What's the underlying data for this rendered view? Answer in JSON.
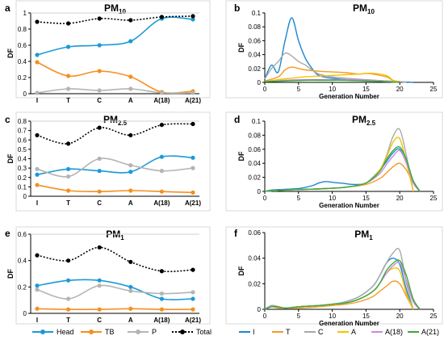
{
  "chart_data": [
    {
      "panel": "a",
      "type": "line",
      "title": "PM10",
      "title_main": "PM",
      "title_sub": "10",
      "xlabel": "",
      "ylabel": "DF",
      "categories": [
        "I",
        "T",
        "C",
        "A",
        "A(18)",
        "A(21)"
      ],
      "ylim": [
        0,
        1
      ],
      "yticks": [
        "0",
        "0.2",
        "0.4",
        "0.6",
        "0.8",
        "1"
      ],
      "ytick_values": [
        0,
        0.2,
        0.4,
        0.6,
        0.8,
        1
      ],
      "series": [
        {
          "name": "Head",
          "values": [
            0.48,
            0.58,
            0.6,
            0.65,
            0.93,
            0.92
          ]
        },
        {
          "name": "TB",
          "values": [
            0.39,
            0.22,
            0.28,
            0.21,
            0.02,
            0.03
          ]
        },
        {
          "name": "P",
          "values": [
            0.01,
            0.06,
            0.04,
            0.06,
            0.01,
            0.01
          ]
        },
        {
          "name": "Total",
          "values": [
            0.89,
            0.87,
            0.93,
            0.91,
            0.95,
            0.96
          ]
        }
      ]
    },
    {
      "panel": "c",
      "type": "line",
      "title": "PM2.5",
      "title_main": "PM",
      "title_sub": "2.5",
      "xlabel": "",
      "ylabel": "DF",
      "categories": [
        "I",
        "T",
        "C",
        "A",
        "A(18)",
        "A(21)"
      ],
      "ylim": [
        0,
        0.8
      ],
      "yticks": [
        "0",
        "0.1",
        "0.2",
        "0.3",
        "0.4",
        "0.5",
        "0.6",
        "0.7",
        "0.8"
      ],
      "ytick_values": [
        0,
        0.1,
        0.2,
        0.3,
        0.4,
        0.5,
        0.6,
        0.7,
        0.8
      ],
      "series": [
        {
          "name": "Head",
          "values": [
            0.23,
            0.29,
            0.27,
            0.26,
            0.42,
            0.41
          ]
        },
        {
          "name": "TB",
          "values": [
            0.12,
            0.06,
            0.05,
            0.06,
            0.05,
            0.04
          ]
        },
        {
          "name": "P",
          "values": [
            0.29,
            0.21,
            0.4,
            0.33,
            0.27,
            0.3
          ]
        },
        {
          "name": "Total",
          "values": [
            0.65,
            0.56,
            0.73,
            0.65,
            0.76,
            0.77
          ]
        }
      ]
    },
    {
      "panel": "e",
      "type": "line",
      "title": "PM1",
      "title_main": "PM",
      "title_sub": "1",
      "xlabel": "",
      "ylabel": "DF",
      "categories": [
        "I",
        "T",
        "C",
        "A",
        "A(18)",
        "A(21)"
      ],
      "ylim": [
        0,
        0.6
      ],
      "yticks": [
        "0",
        "0.2",
        "0.4",
        "0.6"
      ],
      "ytick_values": [
        0,
        0.2,
        0.4,
        0.6
      ],
      "series": [
        {
          "name": "Head",
          "values": [
            0.21,
            0.25,
            0.25,
            0.2,
            0.11,
            0.11
          ]
        },
        {
          "name": "TB",
          "values": [
            0.035,
            0.03,
            0.03,
            0.035,
            0.03,
            0.03
          ]
        },
        {
          "name": "P",
          "values": [
            0.18,
            0.11,
            0.21,
            0.17,
            0.15,
            0.16
          ]
        },
        {
          "name": "Total",
          "values": [
            0.44,
            0.4,
            0.5,
            0.39,
            0.32,
            0.33
          ]
        }
      ]
    },
    {
      "panel": "b",
      "type": "line",
      "title": "PM10",
      "title_main": "PM",
      "title_sub": "10",
      "xlabel": "Generation Number",
      "ylabel": "DF",
      "xlim": [
        0,
        25
      ],
      "xticks": [
        "0",
        "5",
        "10",
        "15",
        "20",
        "25"
      ],
      "xtick_values": [
        0,
        5,
        10,
        15,
        20,
        25
      ],
      "ylim": [
        0,
        0.1
      ],
      "yticks": [
        "0",
        "0.02",
        "0.04",
        "0.06",
        "0.08",
        "0.1"
      ],
      "ytick_values": [
        0,
        0.02,
        0.04,
        0.06,
        0.08,
        0.1
      ],
      "series": [
        {
          "name": "I",
          "x": [
            0,
            1,
            2,
            3,
            4,
            5,
            6,
            7,
            8,
            10,
            12,
            14,
            16,
            18,
            20,
            22
          ],
          "values": [
            0.005,
            0.025,
            0.015,
            0.06,
            0.093,
            0.06,
            0.035,
            0.02,
            0.01,
            0.006,
            0.004,
            0.003,
            0.003,
            0.002,
            0.001,
            0
          ]
        },
        {
          "name": "T",
          "x": [
            0,
            2,
            3,
            4,
            5,
            6,
            8,
            10,
            12,
            14,
            15,
            16,
            18,
            19,
            20,
            21
          ],
          "values": [
            0.002,
            0.008,
            0.018,
            0.022,
            0.02,
            0.018,
            0.016,
            0.015,
            0.014,
            0.012,
            0.013,
            0.012,
            0.008,
            0.003,
            0.001,
            0
          ]
        },
        {
          "name": "C",
          "x": [
            0,
            1,
            2,
            3,
            4,
            5,
            6,
            7,
            8,
            10,
            12,
            15,
            18,
            20,
            21
          ],
          "values": [
            0.005,
            0.02,
            0.03,
            0.042,
            0.038,
            0.03,
            0.025,
            0.018,
            0.012,
            0.008,
            0.006,
            0.004,
            0.002,
            0.001,
            0
          ]
        },
        {
          "name": "A",
          "x": [
            0,
            2,
            4,
            6,
            8,
            10,
            12,
            14,
            16,
            18,
            19,
            20
          ],
          "values": [
            0.001,
            0.004,
            0.006,
            0.008,
            0.009,
            0.01,
            0.011,
            0.012,
            0.013,
            0.01,
            0.003,
            0
          ]
        },
        {
          "name": "A(18)",
          "x": [
            0,
            3,
            6,
            9,
            12,
            15,
            18,
            20
          ],
          "values": [
            0.001,
            0.003,
            0.004,
            0.004,
            0.004,
            0.003,
            0.001,
            0
          ]
        },
        {
          "name": "A(21)",
          "x": [
            0,
            3,
            6,
            9,
            12,
            15,
            18,
            20
          ],
          "values": [
            0.001,
            0.002,
            0.003,
            0.003,
            0.003,
            0.002,
            0.001,
            0
          ]
        }
      ]
    },
    {
      "panel": "d",
      "type": "line",
      "title": "PM2.5",
      "title_main": "PM",
      "title_sub": "2.5",
      "xlabel": "Generation Number",
      "ylabel": "DF",
      "xlim": [
        0,
        25
      ],
      "xticks": [
        "0",
        "5",
        "10",
        "15",
        "20",
        "25"
      ],
      "xtick_values": [
        0,
        5,
        10,
        15,
        20,
        25
      ],
      "ylim": [
        0,
        0.1
      ],
      "yticks": [
        "0",
        "0.02",
        "0.04",
        "0.06",
        "0.08",
        "0.1"
      ],
      "ytick_values": [
        0,
        0.02,
        0.04,
        0.06,
        0.08,
        0.1
      ],
      "series": [
        {
          "name": "I",
          "x": [
            0,
            1,
            3,
            5,
            7,
            8,
            9,
            10,
            11,
            12,
            13,
            15,
            17,
            18,
            19,
            20,
            21,
            22,
            23
          ],
          "values": [
            0,
            0.002,
            0.003,
            0.004,
            0.008,
            0.012,
            0.014,
            0.013,
            0.012,
            0.011,
            0.01,
            0.012,
            0.03,
            0.042,
            0.055,
            0.06,
            0.04,
            0.015,
            0
          ]
        },
        {
          "name": "T",
          "x": [
            0,
            3,
            6,
            9,
            12,
            15,
            17,
            18,
            19,
            20,
            21,
            22,
            23
          ],
          "values": [
            0,
            0.002,
            0.003,
            0.004,
            0.006,
            0.01,
            0.018,
            0.026,
            0.035,
            0.04,
            0.03,
            0.012,
            0
          ]
        },
        {
          "name": "C",
          "x": [
            0,
            3,
            6,
            9,
            12,
            15,
            17,
            18,
            19,
            20,
            21,
            22
          ],
          "values": [
            0,
            0.002,
            0.003,
            0.004,
            0.006,
            0.012,
            0.03,
            0.05,
            0.078,
            0.088,
            0.05,
            0
          ]
        },
        {
          "name": "A",
          "x": [
            0,
            3,
            6,
            9,
            12,
            15,
            17,
            18,
            19,
            20,
            21,
            22
          ],
          "values": [
            0,
            0.002,
            0.003,
            0.004,
            0.006,
            0.012,
            0.03,
            0.048,
            0.07,
            0.075,
            0.04,
            0
          ]
        },
        {
          "name": "A(18)",
          "x": [
            0,
            3,
            6,
            9,
            12,
            15,
            17,
            18,
            19,
            20,
            21,
            22,
            23
          ],
          "values": [
            0,
            0.002,
            0.003,
            0.004,
            0.006,
            0.012,
            0.025,
            0.038,
            0.05,
            0.058,
            0.04,
            0.012,
            0
          ]
        },
        {
          "name": "A(21)",
          "x": [
            0,
            3,
            6,
            9,
            12,
            15,
            17,
            18,
            19,
            20,
            21,
            22,
            23
          ],
          "values": [
            0,
            0.002,
            0.003,
            0.004,
            0.006,
            0.012,
            0.028,
            0.045,
            0.058,
            0.063,
            0.045,
            0.015,
            0
          ]
        }
      ]
    },
    {
      "panel": "f",
      "type": "line",
      "title": "PM1",
      "title_main": "PM",
      "title_sub": "1",
      "xlabel": "Generation Number",
      "ylabel": "DF",
      "xlim": [
        0,
        25
      ],
      "xticks": [
        "0",
        "5",
        "10",
        "15",
        "20",
        "25"
      ],
      "xtick_values": [
        0,
        5,
        10,
        15,
        20,
        25
      ],
      "ylim": [
        0,
        0.06
      ],
      "yticks": [
        "0",
        "0.02",
        "0.04",
        "0.06"
      ],
      "ytick_values": [
        0,
        0.02,
        0.04,
        0.06
      ],
      "series": [
        {
          "name": "I",
          "x": [
            0,
            1,
            2,
            3,
            5,
            8,
            10,
            12,
            14,
            16,
            17,
            18,
            19,
            20,
            21,
            22
          ],
          "values": [
            0,
            0.003,
            0.002,
            0.001,
            0.002,
            0.003,
            0.004,
            0.006,
            0.01,
            0.018,
            0.026,
            0.036,
            0.04,
            0.035,
            0.015,
            0
          ]
        },
        {
          "name": "T",
          "x": [
            0,
            1,
            2,
            3,
            5,
            8,
            10,
            12,
            14,
            16,
            17,
            18,
            19,
            20,
            21,
            22
          ],
          "values": [
            0,
            0.002,
            0.001,
            0.001,
            0.001,
            0.002,
            0.003,
            0.004,
            0.006,
            0.01,
            0.014,
            0.018,
            0.022,
            0.02,
            0.01,
            0
          ]
        },
        {
          "name": "C",
          "x": [
            0,
            1,
            2,
            3,
            5,
            8,
            10,
            12,
            14,
            16,
            17,
            18,
            19,
            20,
            21,
            22
          ],
          "values": [
            0,
            0.003,
            0.002,
            0.001,
            0.002,
            0.003,
            0.004,
            0.006,
            0.01,
            0.018,
            0.026,
            0.036,
            0.044,
            0.046,
            0.02,
            0
          ]
        },
        {
          "name": "A",
          "x": [
            0,
            1,
            2,
            3,
            5,
            8,
            10,
            12,
            14,
            16,
            17,
            18,
            19,
            20,
            21,
            22
          ],
          "values": [
            0,
            0.002,
            0.002,
            0.001,
            0.002,
            0.003,
            0.004,
            0.005,
            0.008,
            0.014,
            0.02,
            0.028,
            0.032,
            0.03,
            0.012,
            0
          ]
        },
        {
          "name": "A(18)",
          "x": [
            0,
            1,
            2,
            3,
            5,
            8,
            10,
            12,
            14,
            16,
            17,
            18,
            19,
            20,
            21,
            22,
            23
          ],
          "values": [
            0,
            0.002,
            0.002,
            0.001,
            0.002,
            0.003,
            0.004,
            0.005,
            0.008,
            0.014,
            0.02,
            0.028,
            0.034,
            0.036,
            0.022,
            0.006,
            0
          ]
        },
        {
          "name": "A(21)",
          "x": [
            0,
            1,
            2,
            3,
            5,
            8,
            10,
            12,
            14,
            16,
            17,
            18,
            19,
            20,
            21,
            22,
            23
          ],
          "values": [
            0,
            0.002,
            0.002,
            0.001,
            0.002,
            0.003,
            0.004,
            0.005,
            0.008,
            0.014,
            0.02,
            0.03,
            0.036,
            0.038,
            0.026,
            0.008,
            0
          ]
        }
      ]
    }
  ],
  "legends": {
    "left": [
      {
        "name": "Head",
        "color": "#1b9ad6",
        "dashed": false
      },
      {
        "name": "TB",
        "color": "#f5901e",
        "dashed": false
      },
      {
        "name": "P",
        "color": "#b4b4b4",
        "dashed": false
      },
      {
        "name": "Total",
        "color": "#000000",
        "dashed": true
      }
    ],
    "right": [
      {
        "name": "I",
        "color": "#1b87d0"
      },
      {
        "name": "T",
        "color": "#f59a22"
      },
      {
        "name": "C",
        "color": "#a9a9a9"
      },
      {
        "name": "A",
        "color": "#f2c400"
      },
      {
        "name": "A(18)",
        "color": "#c78be0"
      },
      {
        "name": "A(21)",
        "color": "#3aa935"
      }
    ]
  },
  "colors": {
    "Head": "#1b9ad6",
    "TB": "#f5901e",
    "P": "#b4b4b4",
    "Total": "#000000",
    "I": "#1b87d0",
    "T": "#f59a22",
    "C": "#a9a9a9",
    "A": "#f2c400",
    "A(18)": "#c78be0",
    "A(21)": "#3aa935"
  }
}
